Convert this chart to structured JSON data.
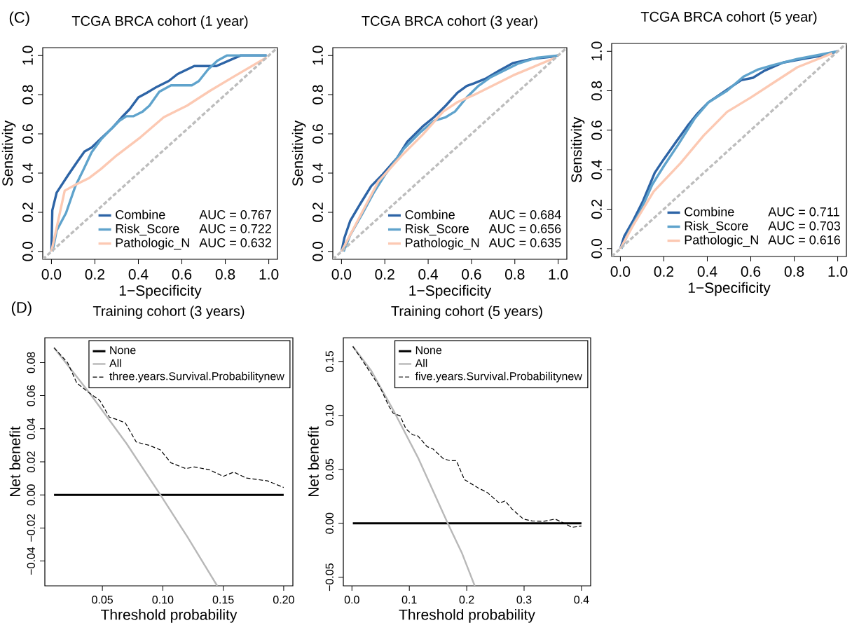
{
  "chart_data": [
    {
      "type": "line",
      "title": "TCGA BRCA cohort (1 year)",
      "xlabel": "1−Specificity",
      "ylabel": "Sensitivity",
      "xlim": [
        -0.04,
        1.04
      ],
      "ylim": [
        -0.04,
        1.04
      ],
      "xticks": [
        {
          "value": 0,
          "label": "0.0"
        },
        {
          "value": 0.2,
          "label": "0.2"
        },
        {
          "value": 0.4,
          "label": "0.4"
        },
        {
          "value": 0.6,
          "label": "0.6"
        },
        {
          "value": 0.8,
          "label": "0.8"
        },
        {
          "value": 1,
          "label": "1.0"
        }
      ],
      "yticks": [
        {
          "value": 0,
          "label": "0.0"
        },
        {
          "value": 0.2,
          "label": "0.2"
        },
        {
          "value": 0.4,
          "label": "0.4"
        },
        {
          "value": 0.6,
          "label": "0.6"
        },
        {
          "value": 0.8,
          "label": "0.8"
        },
        {
          "value": 1,
          "label": "1.0"
        }
      ],
      "annotations": [
        "AUC = 0.767",
        "AUC = 0.722",
        "AUC = 0.632",
        "(C)"
      ],
      "legend": "bottom",
      "series": [
        {
          "name": "Combine",
          "color": "#2d64a6",
          "x": [
            0,
            0.004,
            0.024,
            0.077,
            0.12,
            0.152,
            0.185,
            0.227,
            0.28,
            0.324,
            0.36,
            0.4,
            0.44,
            0.485,
            0.54,
            0.58,
            0.657,
            0.759,
            0.871,
            0.99
          ],
          "values": [
            0,
            0.21,
            0.3,
            0.39,
            0.46,
            0.51,
            0.53,
            0.575,
            0.63,
            0.685,
            0.726,
            0.786,
            0.81,
            0.84,
            0.87,
            0.905,
            0.946,
            0.946,
            1,
            1
          ]
        },
        {
          "name": "Risk_Score",
          "color": "#5fa3cc",
          "x": [
            0.005,
            0.024,
            0.067,
            0.11,
            0.147,
            0.185,
            0.227,
            0.27,
            0.313,
            0.345,
            0.378,
            0.42,
            0.451,
            0.496,
            0.55,
            0.646,
            0.678,
            0.721,
            0.764,
            0.807,
            0.99
          ],
          "values": [
            0,
            0.107,
            0.196,
            0.333,
            0.417,
            0.506,
            0.57,
            0.62,
            0.667,
            0.69,
            0.69,
            0.714,
            0.744,
            0.815,
            0.848,
            0.848,
            0.869,
            0.929,
            0.974,
            1,
            1
          ]
        },
        {
          "name": "Pathologic_N",
          "color": "#fcc9b3",
          "x": [
            0,
            0.061,
            0.11,
            0.174,
            0.227,
            0.3,
            0.41,
            0.517,
            0.624,
            0.73,
            0.84,
            0.99
          ],
          "values": [
            0,
            0.31,
            0.34,
            0.375,
            0.42,
            0.49,
            0.583,
            0.685,
            0.744,
            0.82,
            0.893,
            0.99
          ]
        },
        {
          "color": "#bdbdbd",
          "line_style": "dashed",
          "x": [
            -0.04,
            1.04
          ],
          "values": [
            -0.04,
            1.04
          ]
        }
      ]
    },
    {
      "type": "line",
      "title": "TCGA BRCA cohort (3 year)",
      "xlabel": "1−Specificity",
      "ylabel": "Sensitivity",
      "xlim": [
        -0.04,
        1.04
      ],
      "ylim": [
        -0.04,
        1.04
      ],
      "xticks": [
        {
          "value": 0,
          "label": "0.0"
        },
        {
          "value": 0.2,
          "label": "0.2"
        },
        {
          "value": 0.4,
          "label": "0.4"
        },
        {
          "value": 0.6,
          "label": "0.6"
        },
        {
          "value": 0.8,
          "label": "0.8"
        },
        {
          "value": 1,
          "label": "1.0"
        }
      ],
      "yticks": [
        {
          "value": 0,
          "label": "0.0"
        },
        {
          "value": 0.2,
          "label": "0.2"
        },
        {
          "value": 0.4,
          "label": "0.4"
        },
        {
          "value": 0.6,
          "label": "0.6"
        },
        {
          "value": 0.8,
          "label": "0.8"
        },
        {
          "value": 1,
          "label": "1.0"
        }
      ],
      "legend": "bottom",
      "annotations": [
        "AUC = 0.684",
        "AUC = 0.656",
        "AUC = 0.635"
      ],
      "series": [
        {
          "name": "Combine",
          "color": "#2d64a6",
          "x": [
            0,
            0.014,
            0.04,
            0.084,
            0.137,
            0.19,
            0.256,
            0.304,
            0.374,
            0.427,
            0.481,
            0.535,
            0.578,
            0.61,
            0.664,
            0.728,
            0.793,
            0.879,
            0.975,
            1
          ],
          "values": [
            0,
            0.071,
            0.155,
            0.238,
            0.333,
            0.393,
            0.476,
            0.56,
            0.637,
            0.685,
            0.744,
            0.81,
            0.845,
            0.857,
            0.881,
            0.923,
            0.962,
            0.982,
            0.994,
            1
          ]
        },
        {
          "name": "Risk_Score",
          "color": "#5fa3cc",
          "x": [
            0.01,
            0.04,
            0.095,
            0.148,
            0.202,
            0.288,
            0.363,
            0.427,
            0.481,
            0.524,
            0.578,
            0.632,
            0.685,
            0.75,
            0.814,
            0.9,
            1
          ],
          "values": [
            0,
            0.083,
            0.19,
            0.298,
            0.393,
            0.524,
            0.607,
            0.667,
            0.685,
            0.714,
            0.786,
            0.845,
            0.887,
            0.923,
            0.958,
            0.988,
            1
          ]
        },
        {
          "name": "Pathologic_N",
          "color": "#fcc9b3",
          "x": [
            0,
            0.17,
            0.277,
            0.374,
            0.47,
            0.535,
            0.61,
            0.793,
            0.986
          ],
          "values": [
            0,
            0.357,
            0.488,
            0.595,
            0.714,
            0.762,
            0.798,
            0.899,
            0.988
          ]
        },
        {
          "color": "#bdbdbd",
          "line_style": "dashed",
          "x": [
            -0.04,
            1.04
          ],
          "values": [
            -0.04,
            1.04
          ]
        }
      ]
    },
    {
      "type": "line",
      "title": "TCGA BRCA cohort (5 year)",
      "xlabel": "1−Specificity",
      "ylabel": "Sensitivity",
      "xlim": [
        -0.04,
        1.04
      ],
      "ylim": [
        -0.04,
        1.04
      ],
      "xticks": [
        {
          "value": 0,
          "label": "0.0"
        },
        {
          "value": 0.2,
          "label": "0.2"
        },
        {
          "value": 0.4,
          "label": "0.4"
        },
        {
          "value": 0.6,
          "label": "0.6"
        },
        {
          "value": 0.8,
          "label": "0.8"
        },
        {
          "value": 1,
          "label": "1.0"
        }
      ],
      "yticks": [
        {
          "value": 0,
          "label": "0.0"
        },
        {
          "value": 0.2,
          "label": "0.2"
        },
        {
          "value": 0.4,
          "label": "0.4"
        },
        {
          "value": 0.6,
          "label": "0.6"
        },
        {
          "value": 0.8,
          "label": "0.8"
        },
        {
          "value": 1,
          "label": "1.0"
        }
      ],
      "legend": "bottom",
      "annotations": [
        "AUC = 0.711",
        "AUC = 0.703",
        "AUC = 0.616"
      ],
      "series": [
        {
          "name": "Combine",
          "color": "#2d64a6",
          "x": [
            0,
            0.018,
            0.061,
            0.104,
            0.158,
            0.201,
            0.255,
            0.309,
            0.352,
            0.405,
            0.491,
            0.556,
            0.61,
            0.663,
            0.749,
            0.835,
            0.932,
            1
          ],
          "values": [
            0,
            0.063,
            0.146,
            0.241,
            0.384,
            0.455,
            0.539,
            0.622,
            0.681,
            0.741,
            0.806,
            0.854,
            0.866,
            0.902,
            0.943,
            0.961,
            0.979,
            1
          ]
        },
        {
          "name": "Risk_Score",
          "color": "#5fa3cc",
          "x": [
            0.005,
            0.04,
            0.094,
            0.147,
            0.201,
            0.266,
            0.341,
            0.405,
            0.491,
            0.567,
            0.631,
            0.706,
            0.814,
            1
          ],
          "values": [
            0,
            0.087,
            0.194,
            0.325,
            0.42,
            0.527,
            0.658,
            0.741,
            0.8,
            0.872,
            0.907,
            0.931,
            0.961,
            1
          ]
        },
        {
          "name": "Pathologic_N",
          "color": "#fcc9b3",
          "x": [
            0,
            0.061,
            0.153,
            0.276,
            0.384,
            0.491,
            0.599,
            0.706,
            0.814,
            0.975
          ],
          "values": [
            0,
            0.122,
            0.289,
            0.432,
            0.574,
            0.693,
            0.765,
            0.842,
            0.919,
            0.99
          ]
        },
        {
          "color": "#bdbdbd",
          "line_style": "dashed",
          "x": [
            -0.04,
            1.04
          ],
          "values": [
            -0.04,
            1.04
          ]
        }
      ]
    },
    {
      "type": "line",
      "title": "Training cohort (3 years)",
      "xlabel": "Threshold probability",
      "ylabel": "Net benefit",
      "xlim": [
        0.0024,
        0.2076
      ],
      "ylim": [
        -0.055,
        0.095
      ],
      "xticks": [
        {
          "value": 0.05,
          "label": "0.05"
        },
        {
          "value": 0.1,
          "label": "0.10"
        },
        {
          "value": 0.15,
          "label": "0.15"
        },
        {
          "value": 0.2,
          "label": "0.20"
        }
      ],
      "yticks": [
        {
          "value": -0.04,
          "label": "−0.04"
        },
        {
          "value": -0.02,
          "label": "−0.02"
        },
        {
          "value": 0,
          "label": "0.00"
        },
        {
          "value": 0.02,
          "label": "0.02"
        },
        {
          "value": 0.04,
          "label": "0.04"
        },
        {
          "value": 0.06,
          "label": "0.06"
        },
        {
          "value": 0.08,
          "label": "0.08"
        }
      ],
      "legend": "top right",
      "annotations": [
        "(D)"
      ],
      "series": [
        {
          "name": "None",
          "color": "#000000",
          "x": [
            0.01,
            0.2
          ],
          "values": [
            0,
            0
          ]
        },
        {
          "name": "All",
          "color": "#b8b8b8",
          "x": [
            0.01,
            0.04,
            0.07,
            0.098,
            0.12,
            0.145
          ],
          "values": [
            0.089,
            0.061,
            0.031,
            0,
            -0.025,
            -0.055
          ]
        },
        {
          "name": "three.years.Survival.Probabilitynew",
          "color": "#000000",
          "line_style": "dashed",
          "x": [
            0.01,
            0.0212,
            0.0288,
            0.0385,
            0.048,
            0.0558,
            0.0615,
            0.069,
            0.078,
            0.0885,
            0.098,
            0.1067,
            0.119,
            0.126,
            0.1385,
            0.15,
            0.1587,
            0.169,
            0.1865,
            0.2
          ],
          "values": [
            0.089,
            0.08,
            0.0677,
            0.062,
            0.057,
            0.047,
            0.0457,
            0.0435,
            0.032,
            0.03,
            0.0272,
            0.0194,
            0.0159,
            0.0169,
            0.0152,
            0.0112,
            0.0138,
            0.0102,
            0.0085,
            0.0045
          ]
        }
      ]
    },
    {
      "type": "line",
      "title": "Training cohort (5 years)",
      "xlabel": "Threshold probability",
      "ylabel": "Net benefit",
      "xlim": [
        -0.015,
        0.416
      ],
      "ylim": [
        -0.058,
        0.172
      ],
      "xticks": [
        {
          "value": 0,
          "label": "0.0"
        },
        {
          "value": 0.1,
          "label": "0.1"
        },
        {
          "value": 0.2,
          "label": "0.2"
        },
        {
          "value": 0.3,
          "label": "0.3"
        },
        {
          "value": 0.4,
          "label": "0.4"
        }
      ],
      "yticks": [
        {
          "value": -0.05,
          "label": "−0.05"
        },
        {
          "value": 0,
          "label": "0.00"
        },
        {
          "value": 0.05,
          "label": "0.05"
        },
        {
          "value": 0.1,
          "label": "0.10"
        },
        {
          "value": 0.15,
          "label": "0.15"
        }
      ],
      "legend": "top right",
      "series": [
        {
          "name": "None",
          "color": "#000000",
          "x": [
            0.0016,
            0.4
          ],
          "values": [
            0,
            0
          ]
        },
        {
          "name": "All",
          "color": "#b8b8b8",
          "x": [
            0.0016,
            0.033,
            0.074,
            0.115,
            0.167,
            0.192,
            0.214
          ],
          "values": [
            0.164,
            0.142,
            0.103,
            0.061,
            0,
            -0.028,
            -0.058
          ]
        },
        {
          "name": "five.years.Survival.Probabilitynew",
          "color": "#000000",
          "line_style": "dashed",
          "x": [
            0.0016,
            0.017,
            0.033,
            0.05,
            0.064,
            0.072,
            0.084,
            0.094,
            0.106,
            0.115,
            0.131,
            0.141,
            0.159,
            0.171,
            0.182,
            0.196,
            0.22,
            0.236,
            0.257,
            0.267,
            0.279,
            0.299,
            0.314,
            0.334,
            0.354,
            0.37,
            0.383,
            0.4
          ],
          "values": [
            0.164,
            0.152,
            0.139,
            0.125,
            0.109,
            0.102,
            0.0996,
            0.0876,
            0.082,
            0.081,
            0.071,
            0.069,
            0.06,
            0.058,
            0.058,
            0.0405,
            0.0328,
            0.0285,
            0.0186,
            0.0208,
            0.0131,
            0.0039,
            0.0022,
            0.0018,
            0.0039,
            0,
            -0.0037,
            -0.0026
          ]
        }
      ]
    }
  ]
}
